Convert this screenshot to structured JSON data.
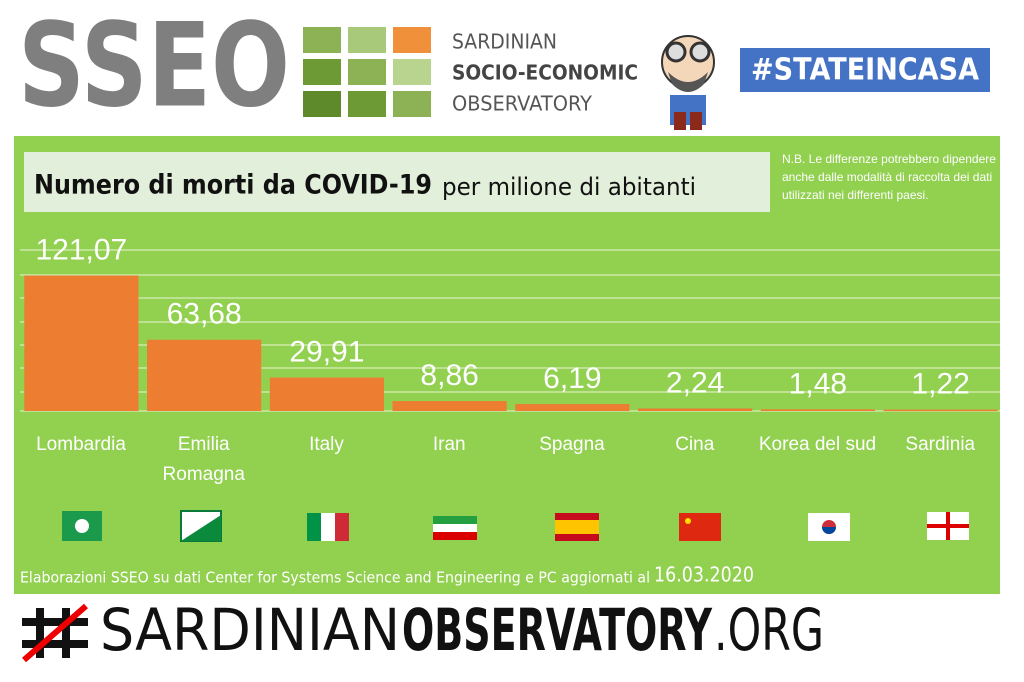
{
  "header": {
    "logo": "SSEO",
    "line1": "SARDINIAN",
    "line2": "SOCIO-ECONOMIC",
    "line3": "OBSERVATORY",
    "tag": "#STATEINCASA"
  },
  "chart_data": {
    "type": "bar",
    "title": "Numero di morti da COVID-19",
    "subtitle": "per milione di abitanti",
    "note": "N.B. Le differenze potrebbero dipendere anche  dalle modalità di raccolta dei dati utilizzati nei differenti paesi.",
    "categories": [
      "Lombardia",
      "Emilia Romagna",
      "Italy",
      "Iran",
      "Spagna",
      "Cina",
      "Korea del sud",
      "Sardinia"
    ],
    "values": [
      121.07,
      63.68,
      29.91,
      8.86,
      6.19,
      2.24,
      1.48,
      1.22
    ],
    "value_labels": [
      "121,07",
      "63,68",
      "29,91",
      "8,86",
      "6,19",
      "2,24",
      "1,48",
      "1,22"
    ],
    "color": "#ed7d31",
    "ylim": [
      0,
      160
    ],
    "source": "Elaborazioni SSEO su dati Center for Systems Science and Engineering  e PC aggiornati al",
    "date": "16.03.2020"
  },
  "footer": {
    "part1": "SARDINIAN",
    "part2": "OBSERVATORY",
    "part3": ".ORG"
  }
}
